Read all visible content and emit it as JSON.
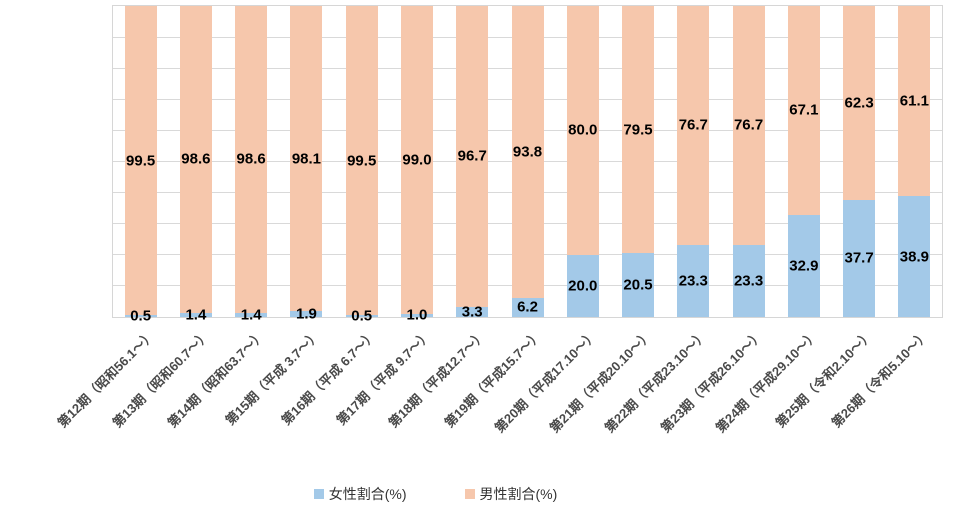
{
  "chart_data": {
    "type": "bar",
    "stacked": true,
    "orientation": "vertical",
    "title": "",
    "xlabel": "",
    "ylabel": "",
    "ylim": [
      0,
      100
    ],
    "grid": "horizontal",
    "grid_intervals": 10,
    "gridline_color": "#D9D9D9",
    "data_label_color": "#000000",
    "axis_label_color": "#4a4a4a",
    "legend_position": "bottom",
    "categories": [
      "第12期（昭和56.1～）",
      "第13期（昭和60.7～）",
      "第14期（昭和63.7～）",
      "第15期（平成 3.7～）",
      "第16期（平成 6.7～）",
      "第17期（平成 9.7～）",
      "第18期（平成12.7～）",
      "第19期（平成15.7～）",
      "第20期（平成17.10～）",
      "第21期（平成20.10～）",
      "第22期（平成23.10～）",
      "第23期（平成26.10～）",
      "第24期（平成29.10～）",
      "第25期（令和2.10～）",
      "第26期（令和5.10～）"
    ],
    "series": [
      {
        "name": "女性割合(%)",
        "color": "#A3C9E8",
        "values": [
          0.5,
          1.4,
          1.4,
          1.9,
          0.5,
          1.0,
          3.3,
          6.2,
          20.0,
          20.5,
          23.3,
          23.3,
          32.9,
          37.7,
          38.9
        ]
      },
      {
        "name": "男性割合(%)",
        "color": "#F6C7AC",
        "values": [
          99.5,
          98.6,
          98.6,
          98.1,
          99.5,
          99.0,
          96.7,
          93.8,
          80.0,
          79.5,
          76.7,
          76.7,
          67.1,
          62.3,
          61.1
        ]
      }
    ]
  },
  "legend": {
    "female_label": "女性割合(%)",
    "male_label": "男性割合(%)"
  }
}
